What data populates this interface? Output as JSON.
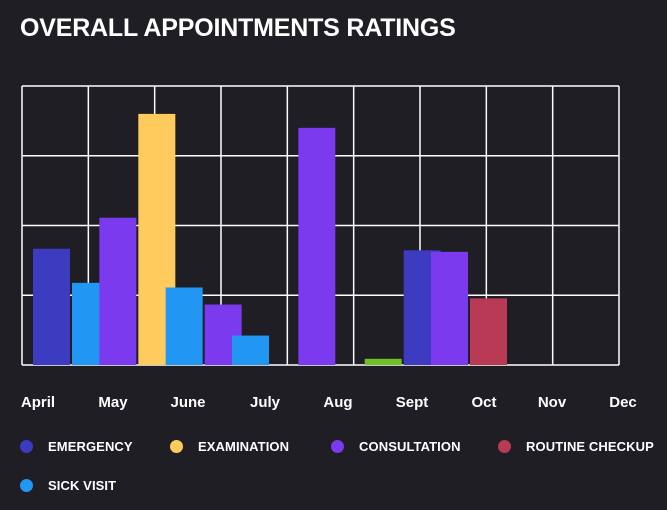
{
  "title": "OVERALL APPOINTMENTS RATINGS",
  "colors": {
    "background": "#1e1e24",
    "grid": "#ffffff",
    "emergency": "#3d3bbf",
    "examination": "#ffcb5c",
    "consultation": "#7b3aed",
    "routine_checkup": "#b83a55",
    "sick_visit": "#2196f3"
  },
  "legend": [
    {
      "label": "EMERGENCY",
      "color": "#3d3bbf"
    },
    {
      "label": "EXAMINATION",
      "color": "#ffcb5c"
    },
    {
      "label": "CONSULTATION",
      "color": "#7b3aed"
    },
    {
      "label": "ROUTINE CHECKUP",
      "color": "#b83a55"
    },
    {
      "label": "SICK VISIT",
      "color": "#2196f3"
    }
  ],
  "chart_data": {
    "type": "bar",
    "title": "OVERALL APPOINTMENTS RATINGS",
    "categories": [
      "April",
      "May",
      "June",
      "July",
      "Aug",
      "Sept",
      "Oct",
      "Nov",
      "Dec"
    ],
    "ylim": [
      0,
      90
    ],
    "grid": true,
    "legend_position": "bottom",
    "bars": [
      {
        "category": "April",
        "series": "EMERGENCY",
        "value": 37.5
      },
      {
        "category": "April",
        "series": "SICK VISIT",
        "value": 26.5
      },
      {
        "category": "May",
        "series": "CONSULTATION",
        "value": 47.5
      },
      {
        "category": "May",
        "series": "EXAMINATION",
        "value": 81
      },
      {
        "category": "June",
        "series": "SICK VISIT",
        "value": 25
      },
      {
        "category": "June",
        "series": "CONSULTATION",
        "value": 19.5
      },
      {
        "category": "July",
        "series": "SICK VISIT",
        "value": 9.5
      },
      {
        "category": "Aug",
        "series": "CONSULTATION",
        "value": 76.5
      },
      {
        "category": "Sept",
        "series": "ROUTINE CHECKUP",
        "value": 2,
        "color": "#6fbf2a"
      },
      {
        "category": "Sept",
        "series": "EMERGENCY",
        "value": 37
      },
      {
        "category": "Oct",
        "series": "CONSULTATION",
        "value": 36.5
      },
      {
        "category": "Oct",
        "series": "ROUTINE CHECKUP",
        "value": 21.5
      }
    ]
  }
}
